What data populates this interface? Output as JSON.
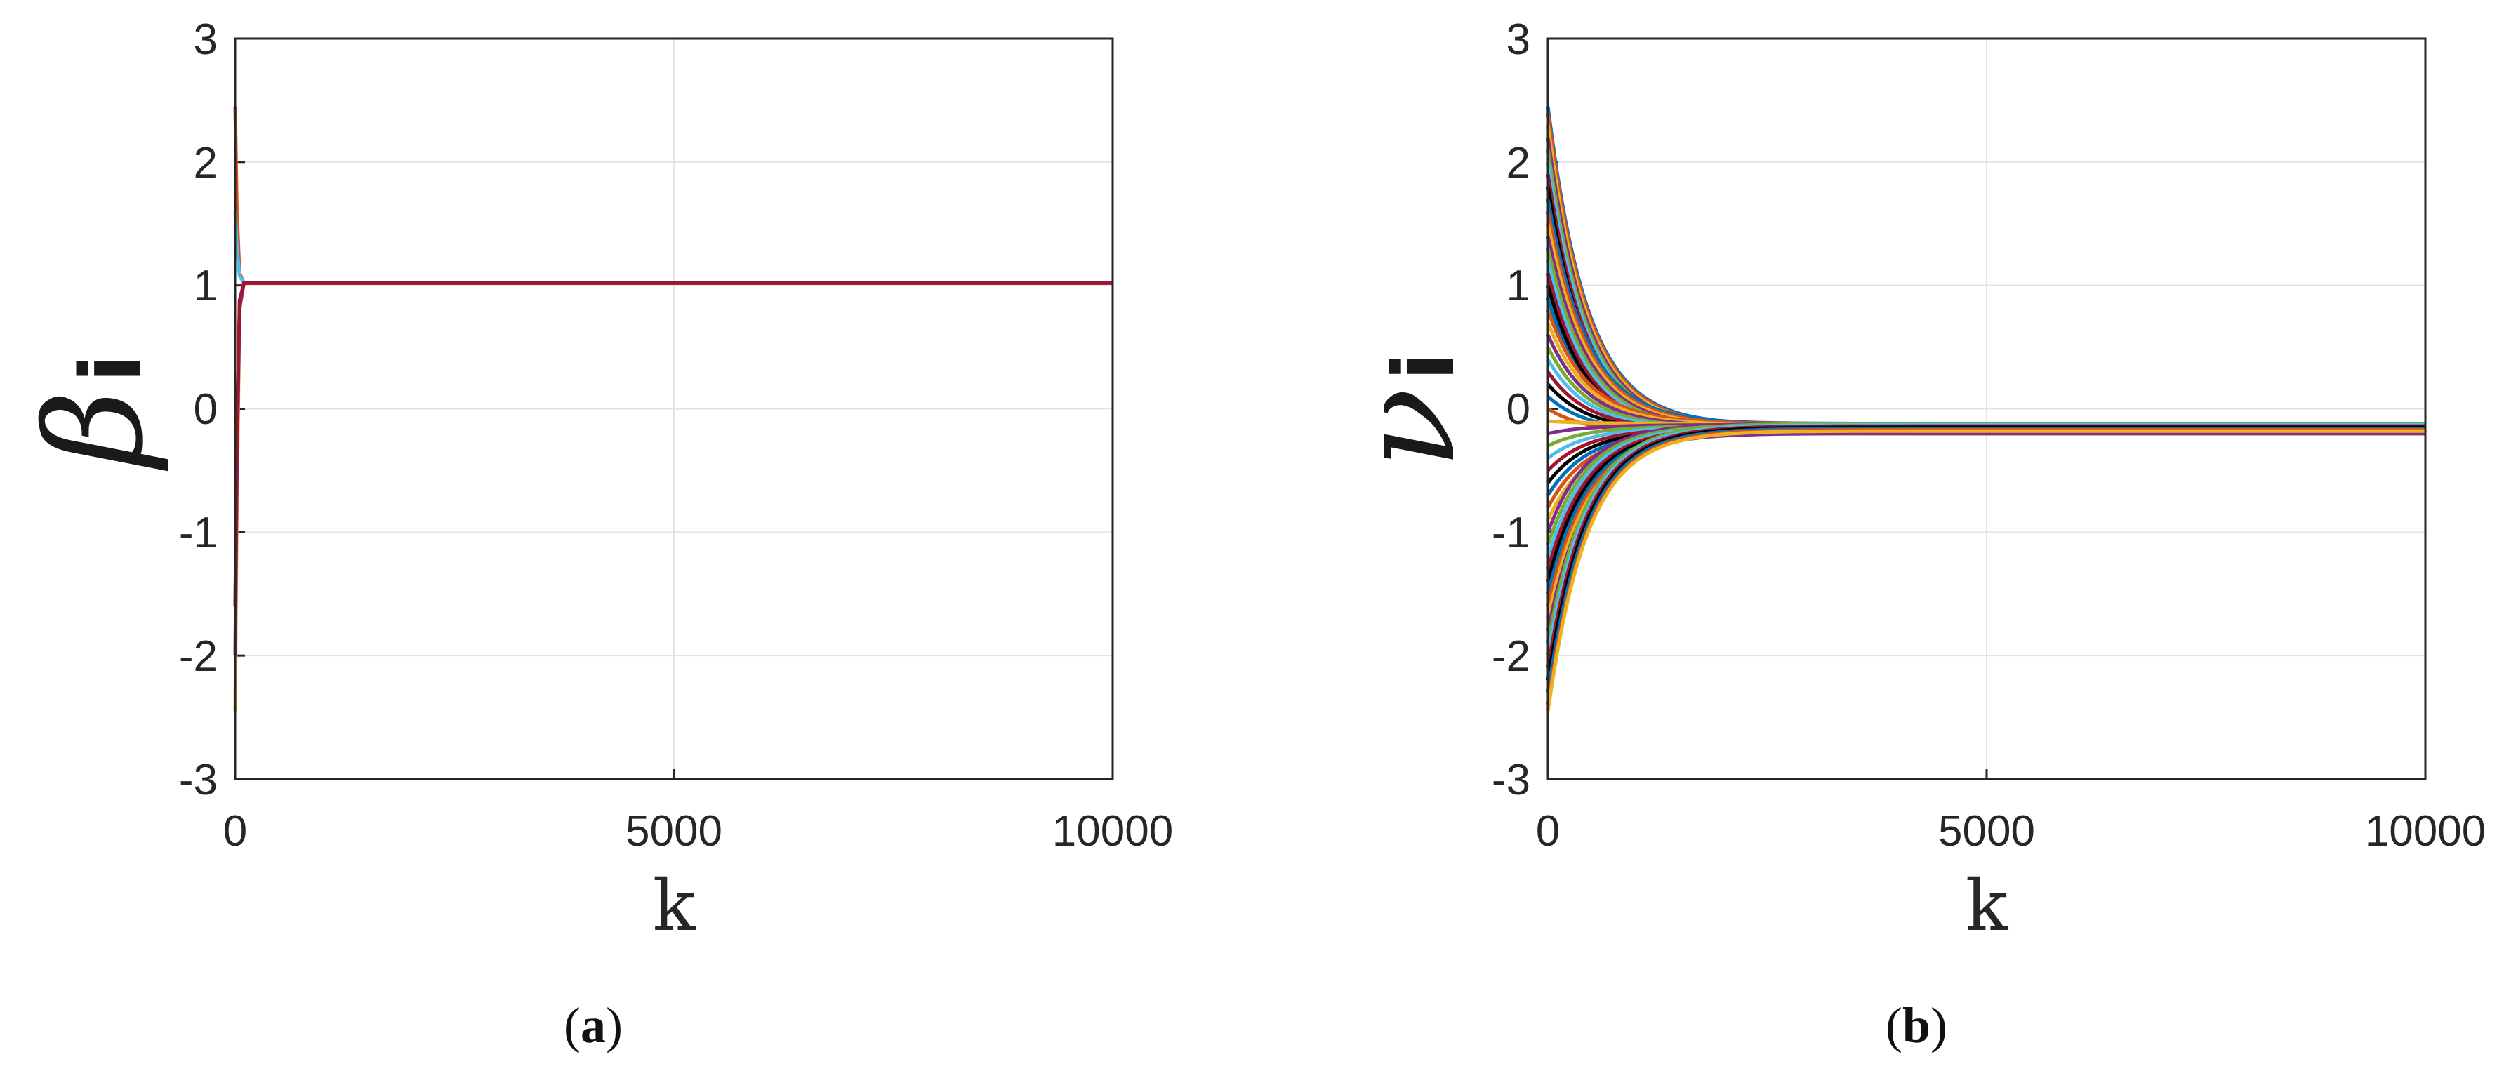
{
  "chart_data": [
    {
      "type": "line",
      "panel_label": "a",
      "xlabel": "k",
      "ylabel": "β",
      "ylabel_subscript": "i",
      "xlim": [
        0,
        10000
      ],
      "ylim": [
        -3,
        3
      ],
      "xticks": [
        "0",
        "5000",
        "10000"
      ],
      "yticks": [
        "-3",
        "-2",
        "-1",
        "0",
        "1",
        "2",
        "3"
      ],
      "grid": true,
      "legend": "none",
      "convergence_value": 1.02,
      "series": [
        {
          "color": "#D95319",
          "x": [
            0,
            20,
            50,
            100,
            300,
            10000
          ],
          "y": [
            2.45,
            1.6,
            1.1,
            1.02,
            1.02,
            1.02
          ]
        },
        {
          "color": "#4DBEEE",
          "x": [
            0,
            20,
            50,
            100,
            300,
            10000
          ],
          "y": [
            1.6,
            1.3,
            1.08,
            1.02,
            1.02,
            1.02
          ]
        },
        {
          "color": "#77AC30",
          "x": [
            0,
            20,
            50,
            100,
            300,
            10000
          ],
          "y": [
            -1.6,
            -0.4,
            0.85,
            1.02,
            1.02,
            1.02
          ]
        },
        {
          "color": "#EDB120",
          "x": [
            0,
            20,
            50,
            100,
            300,
            10000
          ],
          "y": [
            -2.45,
            -0.8,
            0.8,
            1.02,
            1.02,
            1.02
          ]
        },
        {
          "color": "#7E2F8E",
          "x": [
            0,
            20,
            50,
            100,
            300,
            10000
          ],
          "y": [
            -2.0,
            -0.5,
            0.82,
            1.02,
            1.02,
            1.02
          ]
        },
        {
          "color": "#A2142F",
          "x": [
            0,
            20,
            50,
            100,
            300,
            10000
          ],
          "y": [
            -1.6,
            -0.3,
            0.88,
            1.02,
            1.02,
            1.02
          ]
        }
      ]
    },
    {
      "type": "line",
      "panel_label": "b",
      "xlabel": "k",
      "ylabel": "ν",
      "ylabel_subscript": "i",
      "xlim": [
        0,
        10000
      ],
      "ylim": [
        -3,
        3
      ],
      "xticks": [
        "0",
        "5000",
        "10000"
      ],
      "yticks": [
        "-3",
        "-2",
        "-1",
        "0",
        "1",
        "2",
        "3"
      ],
      "grid": true,
      "legend": "none",
      "convergence_band": [
        -0.2,
        -0.12
      ],
      "decay_time_constant": 450,
      "series_colors": [
        "#0072BD",
        "#D95319",
        "#EDB120",
        "#7E2F8E",
        "#77AC30",
        "#4DBEEE",
        "#A2142F",
        "#000000"
      ],
      "series_initial_values": [
        2.45,
        2.4,
        2.3,
        2.2,
        2.1,
        2.0,
        1.9,
        1.8,
        1.7,
        1.6,
        1.5,
        1.4,
        1.3,
        1.2,
        1.1,
        1.0,
        0.9,
        0.8,
        0.7,
        0.6,
        0.5,
        0.4,
        0.3,
        0.2,
        0.1,
        0.0,
        -0.1,
        -0.2,
        -0.3,
        -0.4,
        -0.5,
        -0.6,
        -0.7,
        -0.8,
        -0.9,
        -1.0,
        -1.1,
        -1.2,
        -1.3,
        -1.4,
        -1.5,
        -1.6,
        -1.7,
        -1.8,
        -1.9,
        -2.0,
        -2.1,
        -2.2,
        -2.3,
        -2.4,
        -2.45
      ],
      "series_final_values": [
        -0.13,
        -0.14,
        -0.15,
        -0.16,
        -0.17,
        -0.18,
        -0.19,
        -0.2,
        -0.12,
        -0.13,
        -0.14,
        -0.15,
        -0.16,
        -0.17,
        -0.18,
        -0.19,
        -0.2,
        -0.12,
        -0.13,
        -0.14,
        -0.15,
        -0.16,
        -0.17,
        -0.18,
        -0.19,
        -0.2,
        -0.12,
        -0.13,
        -0.14,
        -0.15,
        -0.16,
        -0.17,
        -0.18,
        -0.19,
        -0.2,
        -0.12,
        -0.13,
        -0.14,
        -0.15,
        -0.16,
        -0.17,
        -0.18,
        -0.19,
        -0.2,
        -0.12,
        -0.13,
        -0.14,
        -0.15,
        -0.16,
        -0.17,
        -0.18
      ]
    }
  ]
}
